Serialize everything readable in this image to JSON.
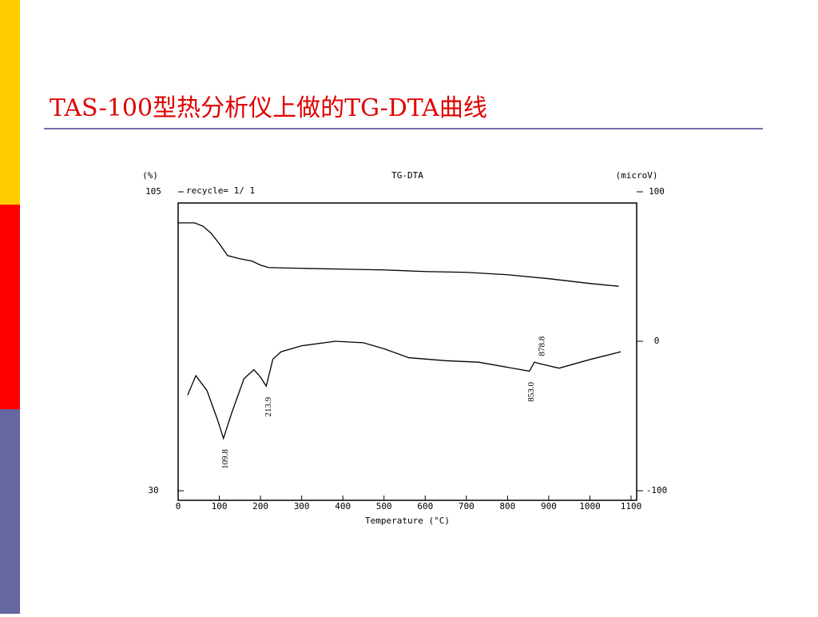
{
  "slide": {
    "title": "TAS-100型热分析仪上做的TG-DTA曲线"
  },
  "chart_data": {
    "type": "line",
    "title": "TG-DTA",
    "subtitle": "recycle= 1/ 1",
    "x_label": "Temperature (°C)",
    "y_label": "(%)",
    "y2_label": "(microV)",
    "xlim": [
      0,
      1100
    ],
    "xticks": [
      0,
      100,
      200,
      300,
      400,
      500,
      600,
      700,
      800,
      900,
      1000,
      1100
    ],
    "ylim": [
      30,
      105
    ],
    "yticks": [
      30,
      105
    ],
    "y2lim": [
      -100,
      100
    ],
    "y2ticks": [
      -100,
      0,
      100
    ],
    "series": [
      {
        "color": "#000000",
        "x": [
          0,
          20,
          40,
          60,
          80,
          100,
          120,
          150,
          180,
          200,
          220,
          300,
          400,
          500,
          600,
          700,
          800,
          900,
          1000,
          1070
        ],
        "values": [
          97.2,
          97.2,
          97.2,
          96.4,
          94.6,
          92,
          89,
          88.2,
          87.6,
          86.6,
          86,
          85.8,
          85.6,
          85.4,
          85,
          84.8,
          84.2,
          83.2,
          82,
          81.3
        ]
      },
      {
        "color": "#000000",
        "axis": "y2",
        "x": [
          23,
          43,
          70,
          95,
          110,
          130,
          160,
          184,
          200,
          214,
          230,
          250,
          300,
          382,
          450,
          500,
          560,
          650,
          730,
          853,
          865,
          878,
          925,
          1003,
          1075
        ],
        "values": [
          -36,
          -23,
          -33,
          -52,
          -65,
          -48,
          -25,
          -19,
          -24,
          -30,
          -12,
          -7,
          -3,
          0,
          -1,
          -5,
          -11,
          -13,
          -14,
          -20,
          -14,
          -15,
          -18,
          -12,
          -7
        ]
      }
    ],
    "annotations": [
      {
        "text": "109.8",
        "x": 109.8,
        "y": -65
      },
      {
        "text": "213.9",
        "x": 213.9,
        "y": -30
      },
      {
        "text": "853.0",
        "x": 853.0,
        "y": -20
      },
      {
        "text": "878.8",
        "x": 878.8,
        "y": -15
      }
    ]
  }
}
